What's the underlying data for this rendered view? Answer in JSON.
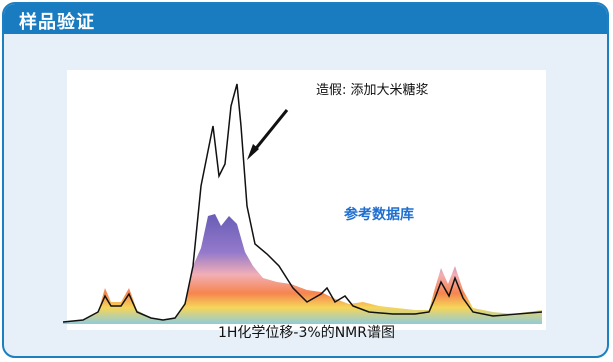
{
  "header": {
    "title": "样品验证"
  },
  "chart_data": {
    "type": "line",
    "title": "",
    "annotation": "造假: 添加大米糖浆",
    "reference_label": "参考数据库",
    "caption": "1H化学位移-3%的NMR谱图",
    "series": [
      {
        "name": "造假: 添加大米糖浆",
        "color": "#000000"
      },
      {
        "name": "参考数据库",
        "color": "#6f5fb8"
      }
    ]
  },
  "colors": {
    "header": "#1a7cc0",
    "background": "#e7f0f8",
    "reference_text": "#1f6fd0"
  }
}
